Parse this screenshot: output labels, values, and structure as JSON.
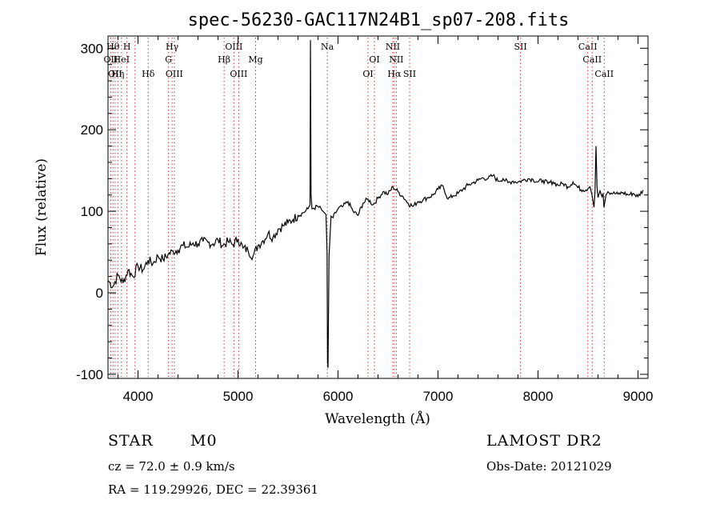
{
  "chart_data": {
    "type": "line",
    "title": "spec-56230-GAC117N24B1_sp07-208.fits",
    "xlabel": "Wavelength (Å)",
    "ylabel": "Flux (relative)",
    "xlim": [
      3700,
      9100
    ],
    "ylim": [
      -105,
      315
    ],
    "x_ticks": [
      4000,
      5000,
      6000,
      7000,
      8000,
      9000
    ],
    "y_ticks": [
      -100,
      0,
      100,
      200,
      300
    ],
    "grid": false,
    "series": [
      {
        "values_x": [
          3700,
          3750,
          3800,
          3850,
          3900,
          3950,
          4000,
          4050,
          4100,
          4150,
          4200,
          4250,
          4300,
          4350,
          4400,
          4450,
          4500,
          4550,
          4600,
          4650,
          4700,
          4750,
          4800,
          4850,
          4900,
          4950,
          5000,
          5050,
          5100,
          5150,
          5200,
          5250,
          5300,
          5350,
          5400,
          5450,
          5500,
          5550,
          5600,
          5650,
          5700,
          5720,
          5725,
          5730,
          5740,
          5800,
          5850,
          5880,
          5890,
          5895,
          5900,
          5910,
          5930,
          5950,
          6000,
          6050,
          6100,
          6150,
          6200,
          6250,
          6300,
          6350,
          6400,
          6450,
          6500,
          6550,
          6600,
          6650,
          6700,
          6750,
          6800,
          6850,
          6900,
          6950,
          7000,
          7050,
          7100,
          7150,
          7200,
          7250,
          7300,
          7350,
          7400,
          7450,
          7500,
          7550,
          7600,
          7650,
          7700,
          7750,
          7800,
          7850,
          7900,
          7950,
          8000,
          8050,
          8100,
          8150,
          8200,
          8250,
          8300,
          8350,
          8400,
          8450,
          8500,
          8520,
          8540,
          8560,
          8570,
          8580,
          8590,
          8600,
          8620,
          8640,
          8650,
          8660,
          8680,
          8700,
          8750,
          8800,
          8850,
          8900,
          8950,
          9000,
          9050
        ],
        "values_y": [
          15,
          8,
          22,
          12,
          28,
          20,
          33,
          28,
          40,
          36,
          45,
          41,
          47,
          51,
          53,
          58,
          56,
          61,
          60,
          63,
          62,
          60,
          65,
          58,
          63,
          59,
          66,
          55,
          52,
          45,
          58,
          64,
          73,
          68,
          78,
          82,
          86,
          90,
          95,
          98,
          103,
          108,
          310,
          120,
          103,
          106,
          100,
          96,
          50,
          -85,
          -92,
          45,
          94,
          92,
          103,
          106,
          112,
          100,
          95,
          110,
          115,
          108,
          116,
          124,
          121,
          130,
          124,
          118,
          110,
          106,
          112,
          114,
          117,
          120,
          127,
          131,
          115,
          119,
          122,
          127,
          132,
          135,
          138,
          141,
          140,
          144,
          137,
          140,
          135,
          137,
          136,
          138,
          140,
          139,
          136,
          138,
          134,
          136,
          132,
          134,
          130,
          136,
          129,
          126,
          128,
          130,
          120,
          105,
          125,
          180,
          130,
          117,
          125,
          118,
          122,
          105,
          120,
          124,
          122,
          121,
          123,
          120,
          122,
          118,
          126
        ]
      }
    ],
    "lines": [
      {
        "w": 3727,
        "label": "OII",
        "row": 2
      },
      {
        "w": 3750,
        "label": "Hθ",
        "row": 1
      },
      {
        "w": 3771,
        "label": "OII",
        "row": 3
      },
      {
        "w": 3798,
        "label": "Hη",
        "row": 3
      },
      {
        "w": 3835,
        "label": "HeI",
        "row": 2
      },
      {
        "w": 3889,
        "label": "H",
        "row": 1
      },
      {
        "w": 3970,
        "label": "",
        "row": 0
      },
      {
        "w": 4102,
        "label": "Hδ",
        "row": 3
      },
      {
        "w": 4305,
        "label": "G",
        "row": 2
      },
      {
        "w": 4341,
        "label": "Hγ",
        "row": 1
      },
      {
        "w": 4363,
        "label": "OIII",
        "row": 3
      },
      {
        "w": 4861,
        "label": "Hβ",
        "row": 2
      },
      {
        "w": 4959,
        "label": "OIII",
        "row": 1
      },
      {
        "w": 5007,
        "label": "OIII",
        "row": 3
      },
      {
        "w": 5176,
        "label": "Mg",
        "row": 2
      },
      {
        "w": 5893,
        "label": "Na",
        "row": 1
      },
      {
        "w": 6300,
        "label": "OI",
        "row": 3
      },
      {
        "w": 6364,
        "label": "OI",
        "row": 2
      },
      {
        "w": 6548,
        "label": "NII",
        "row": 1
      },
      {
        "w": 6563,
        "label": "Hα",
        "row": 3
      },
      {
        "w": 6583,
        "label": "NII",
        "row": 2
      },
      {
        "w": 6716,
        "label": "SII",
        "row": 3
      },
      {
        "w": 7825,
        "label": "SII",
        "row": 1
      },
      {
        "w": 8498,
        "label": "CaII",
        "row": 1
      },
      {
        "w": 8542,
        "label": "CaII",
        "row": 2
      },
      {
        "w": 8662,
        "label": "CaII",
        "row": 3
      }
    ]
  },
  "info": {
    "object_type": "STAR",
    "subclass": "M0",
    "survey": "LAMOST DR2",
    "cz": "cz = 72.0 ± 0.9 km/s",
    "obs_date": "Obs-Date: 20121029",
    "coords": "RA = 119.29926, DEC =  22.39361"
  }
}
